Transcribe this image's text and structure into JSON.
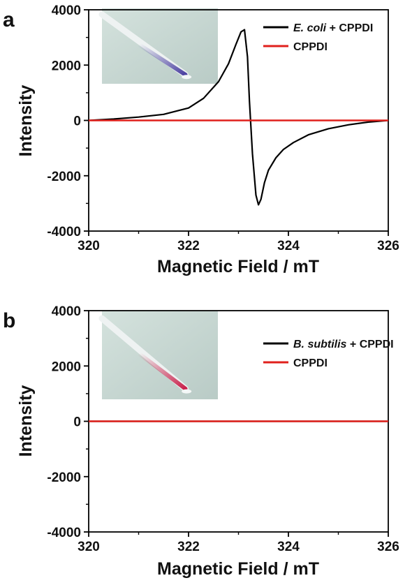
{
  "chart_data": [
    {
      "type": "line",
      "panel": "a",
      "xlabel": "Magnetic Field / mT",
      "ylabel": "Intensity",
      "xlim": [
        320,
        326
      ],
      "ylim": [
        -4000,
        4000
      ],
      "xticks": [
        320,
        322,
        324,
        326
      ],
      "yticks": [
        -4000,
        -2000,
        0,
        2000,
        4000
      ],
      "legend_position": "top-right",
      "inset": "photo of a glass capillary tube containing a blue solution",
      "tube_color": "#4a3fa0",
      "series": [
        {
          "name_italic": "E. coli",
          "name_rest": " + CPPDI",
          "color": "#000000",
          "x": [
            320.0,
            320.5,
            321.0,
            321.5,
            322.0,
            322.3,
            322.6,
            322.8,
            322.95,
            323.05,
            323.12,
            323.18,
            323.22,
            323.28,
            323.35,
            323.4,
            323.45,
            323.52,
            323.6,
            323.75,
            323.9,
            324.1,
            324.4,
            324.8,
            325.2,
            325.6,
            326.0
          ],
          "y": [
            0,
            50,
            120,
            220,
            450,
            800,
            1400,
            2050,
            2750,
            3200,
            3280,
            2300,
            700,
            -1200,
            -2700,
            -3050,
            -2850,
            -2250,
            -1800,
            -1350,
            -1050,
            -800,
            -520,
            -300,
            -160,
            -60,
            0
          ]
        },
        {
          "name": "CPPDI",
          "color": "#e0201c",
          "x": [
            320,
            326
          ],
          "y": [
            0,
            0
          ]
        }
      ]
    },
    {
      "type": "line",
      "panel": "b",
      "xlabel": "Magnetic Field / mT",
      "ylabel": "Intensity",
      "xlim": [
        320,
        326
      ],
      "ylim": [
        -4000,
        4000
      ],
      "xticks": [
        320,
        322,
        324,
        326
      ],
      "yticks": [
        -4000,
        -2000,
        0,
        2000,
        4000
      ],
      "legend_position": "top-right",
      "inset": "photo of a glass capillary tube containing a pink-red solution",
      "tube_color": "#c8204a",
      "series": [
        {
          "name_italic": "B. subtilis",
          "name_rest": " + CPPDI",
          "color": "#000000",
          "x": [
            320,
            326
          ],
          "y": [
            0,
            0
          ]
        },
        {
          "name": "CPPDI",
          "color": "#e0201c",
          "x": [
            320,
            326
          ],
          "y": [
            0,
            0
          ]
        }
      ]
    }
  ]
}
